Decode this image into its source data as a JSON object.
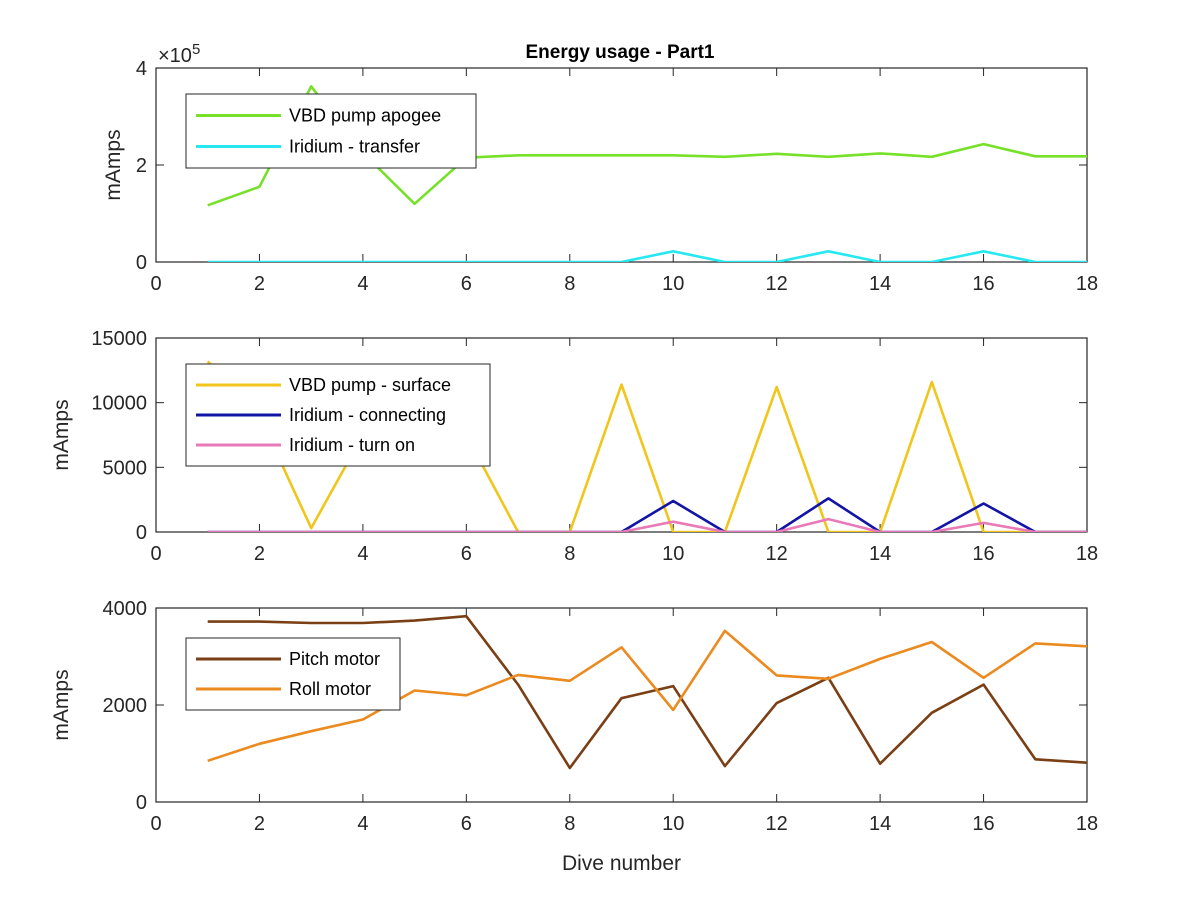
{
  "figure": {
    "title": "Energy usage - Part1"
  },
  "chart_data": [
    {
      "type": "line",
      "title": "Energy usage - Part1",
      "xlabel": "",
      "ylabel": "mAmps",
      "xlim": [
        0,
        18
      ],
      "ylim": [
        0,
        400000
      ],
      "xticks": [
        0,
        2,
        4,
        6,
        8,
        10,
        12,
        14,
        16,
        18
      ],
      "yticks": [
        0,
        2,
        4
      ],
      "ytick_scale": 100000,
      "exponent_label": "×10",
      "exponent_power": "5",
      "grid": false,
      "legend_position": "top-left",
      "x": [
        1,
        2,
        3,
        4,
        5,
        6,
        7,
        8,
        9,
        10,
        11,
        12,
        13,
        14,
        15,
        16,
        17,
        18
      ],
      "series": [
        {
          "name": "VBD pump apogee",
          "color": "#77e12a",
          "values": [
            117000,
            155000,
            362000,
            225000,
            120000,
            215000,
            220000,
            220000,
            220000,
            220000,
            217000,
            223000,
            217000,
            224000,
            217000,
            243000,
            218000,
            218000
          ]
        },
        {
          "name": "Iridium - transfer",
          "color": "#27e8f0",
          "values": [
            0,
            0,
            0,
            0,
            0,
            0,
            0,
            0,
            0,
            22000,
            0,
            0,
            22000,
            0,
            0,
            22000,
            0,
            0
          ]
        }
      ]
    },
    {
      "type": "line",
      "title": "",
      "xlabel": "",
      "ylabel": "mAmps",
      "xlim": [
        0,
        18
      ],
      "ylim": [
        0,
        15000
      ],
      "xticks": [
        0,
        2,
        4,
        6,
        8,
        10,
        12,
        14,
        16,
        18
      ],
      "yticks": [
        0,
        5000,
        10000,
        15000
      ],
      "grid": false,
      "legend_position": "top-left",
      "x": [
        1,
        2,
        3,
        4,
        5,
        6,
        7,
        8,
        9,
        10,
        11,
        12,
        13,
        14,
        15,
        16,
        17,
        18
      ],
      "series": [
        {
          "name": "VBD pump - surface",
          "color": "#f0c61c",
          "values": [
            13200,
            9000,
            300,
            7500,
            8000,
            7500,
            0,
            0,
            11400,
            0,
            0,
            11200,
            0,
            0,
            11600,
            0,
            0,
            0
          ]
        },
        {
          "name": "Iridium - connecting",
          "color": "#1214a6",
          "values": [
            0,
            0,
            0,
            0,
            0,
            0,
            0,
            0,
            0,
            2400,
            0,
            0,
            2600,
            0,
            0,
            2200,
            0,
            0
          ]
        },
        {
          "name": "Iridium - turn on",
          "color": "#e87ab8",
          "values": [
            0,
            0,
            0,
            0,
            0,
            0,
            0,
            0,
            0,
            800,
            0,
            0,
            1000,
            0,
            0,
            700,
            0,
            0
          ]
        }
      ]
    },
    {
      "type": "line",
      "title": "",
      "xlabel": "Dive number",
      "ylabel": "mAmps",
      "xlim": [
        0,
        18
      ],
      "ylim": [
        0,
        4000
      ],
      "xticks": [
        0,
        2,
        4,
        6,
        8,
        10,
        12,
        14,
        16,
        18
      ],
      "yticks": [
        0,
        2000,
        4000
      ],
      "grid": false,
      "legend_position": "top-left",
      "x": [
        1,
        2,
        3,
        4,
        5,
        6,
        7,
        8,
        9,
        10,
        11,
        12,
        13,
        14,
        15,
        16,
        17,
        18
      ],
      "series": [
        {
          "name": "Pitch motor",
          "color": "#7a3f14",
          "values": [
            3720,
            3720,
            3690,
            3690,
            3740,
            3830,
            2420,
            700,
            2140,
            2390,
            740,
            2040,
            2560,
            790,
            1840,
            2420,
            880,
            810
          ]
        },
        {
          "name": "Roll motor",
          "color": "#ea8a1f",
          "values": [
            850,
            1200,
            1460,
            1700,
            2300,
            2200,
            2620,
            2500,
            3190,
            1900,
            3530,
            2610,
            2540,
            2950,
            3300,
            2560,
            3270,
            3210
          ]
        }
      ]
    }
  ]
}
